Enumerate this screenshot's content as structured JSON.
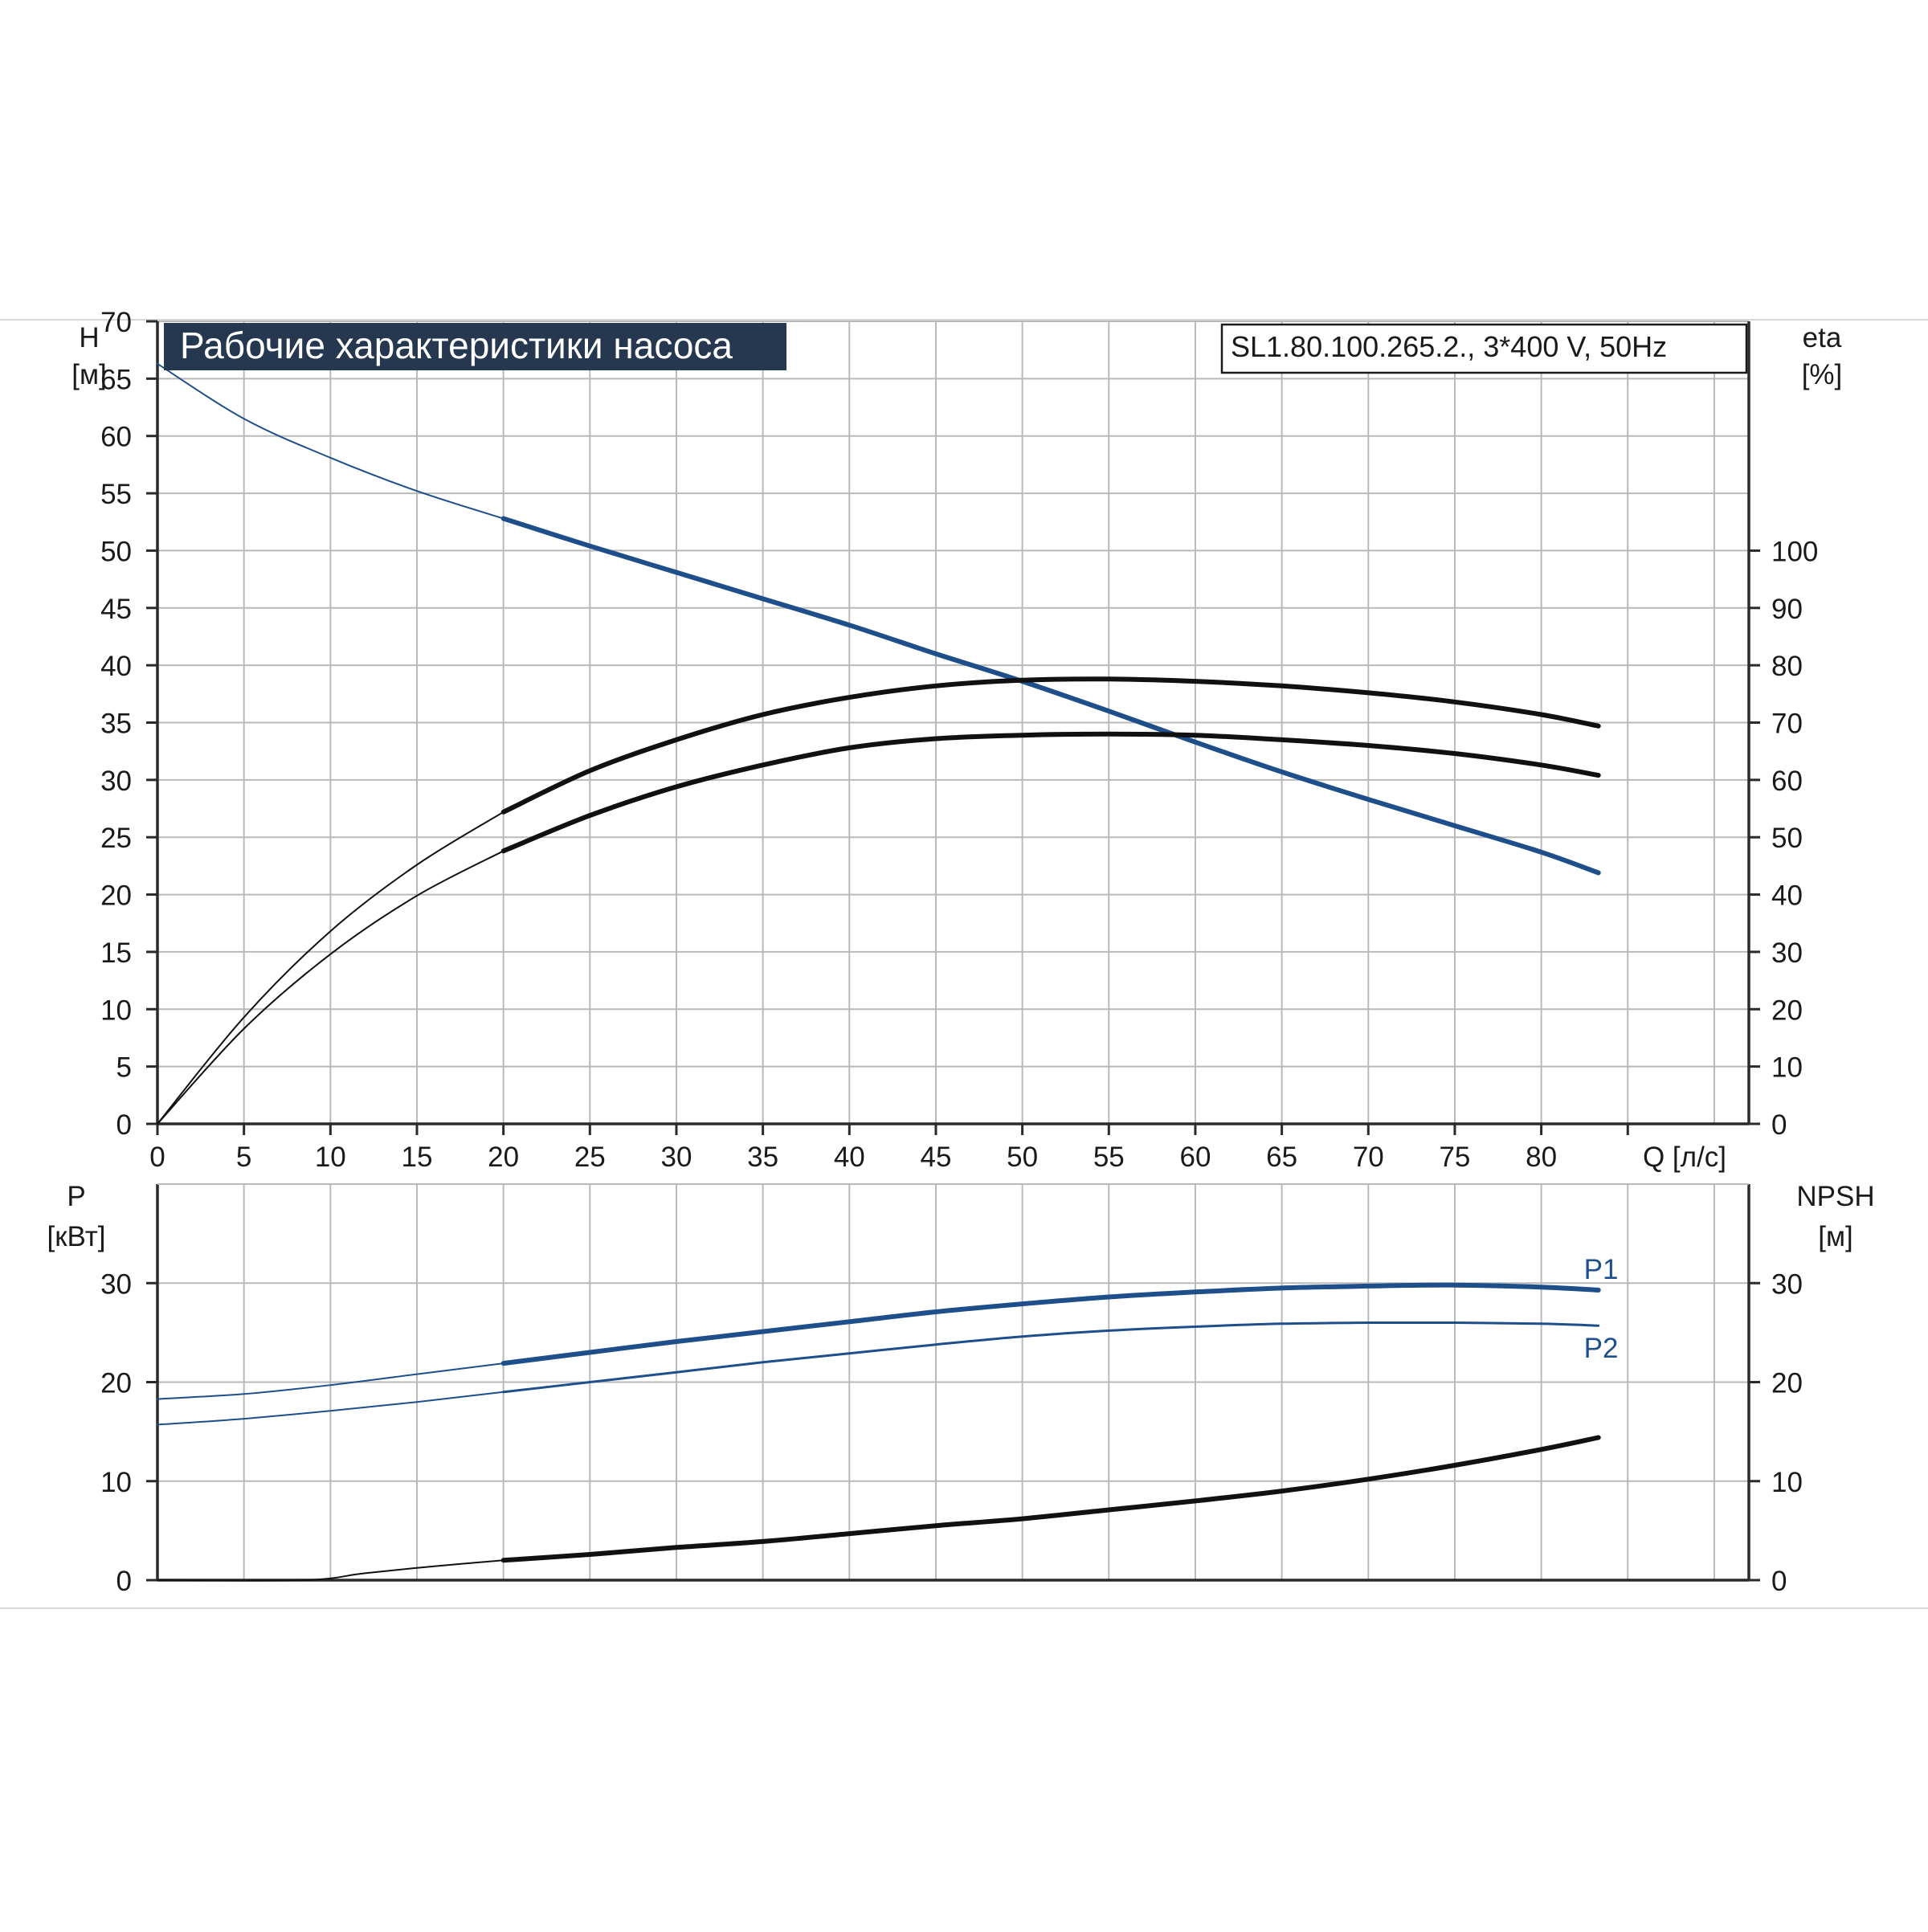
{
  "title": "Рабочие характеристики насоса",
  "model": "SL1.80.100.265.2., 3*400 V, 50Hz",
  "colors": {
    "blue": "#1f4f8b",
    "black": "#111111",
    "grid": "#b9b9b9",
    "axis": "#2a2a2a",
    "title_bg": "#26384f",
    "title_text": "#ffffff"
  },
  "chart_data": [
    {
      "id": "head-efficiency",
      "type": "line",
      "x_axis": {
        "label": "Q [л/с]",
        "range": [
          0,
          92
        ],
        "ticks": [
          0,
          5,
          10,
          15,
          20,
          25,
          30,
          35,
          40,
          45,
          50,
          55,
          60,
          65,
          70,
          75,
          80
        ]
      },
      "y_axis_left": {
        "label_line1": "H",
        "label_line2": "[м]",
        "range": [
          0,
          70
        ],
        "ticks": [
          0,
          5,
          10,
          15,
          20,
          25,
          30,
          35,
          40,
          45,
          50,
          55,
          60,
          65,
          70
        ]
      },
      "y_axis_right": {
        "label_line1": "eta",
        "label_line2": "[%]",
        "range": [
          0,
          140
        ],
        "ticks": [
          0,
          10,
          20,
          30,
          40,
          50,
          60,
          70,
          80,
          90,
          100
        ]
      },
      "grid": true,
      "series": [
        {
          "key": "h",
          "axis": "left",
          "color": "blue",
          "thin_points": [
            [
              0,
              66.3
            ],
            [
              5,
              61.5
            ],
            [
              10,
              58.1
            ],
            [
              15,
              55.2
            ],
            [
              20,
              52.8
            ]
          ],
          "thick_points": [
            [
              20,
              52.8
            ],
            [
              25,
              50.4
            ],
            [
              30,
              48.1
            ],
            [
              35,
              45.8
            ],
            [
              40,
              43.5
            ],
            [
              45,
              41.0
            ],
            [
              50,
              38.6
            ],
            [
              55,
              36.0
            ],
            [
              60,
              33.3
            ],
            [
              65,
              30.7
            ],
            [
              70,
              28.3
            ],
            [
              75,
              26.0
            ],
            [
              80,
              23.7
            ],
            [
              83.3,
              21.9
            ]
          ]
        },
        {
          "key": "eta_upper",
          "axis": "right",
          "color": "black",
          "thin_points": [
            [
              0,
              0
            ],
            [
              5,
              18.6
            ],
            [
              10,
              33.6
            ],
            [
              15,
              45.2
            ],
            [
              20,
              54.4
            ]
          ],
          "thick_points": [
            [
              20,
              54.4
            ],
            [
              25,
              61.6
            ],
            [
              30,
              67.0
            ],
            [
              35,
              71.4
            ],
            [
              40,
              74.4
            ],
            [
              45,
              76.4
            ],
            [
              50,
              77.4
            ],
            [
              55,
              77.6
            ],
            [
              60,
              77.2
            ],
            [
              65,
              76.4
            ],
            [
              70,
              75.2
            ],
            [
              75,
              73.6
            ],
            [
              80,
              71.4
            ],
            [
              83.3,
              69.4
            ]
          ]
        },
        {
          "key": "eta_lower",
          "axis": "right",
          "color": "black",
          "thin_points": [
            [
              0,
              0
            ],
            [
              5,
              16.6
            ],
            [
              10,
              29.6
            ],
            [
              15,
              39.8
            ],
            [
              20,
              47.6
            ]
          ],
          "thick_points": [
            [
              20,
              47.6
            ],
            [
              25,
              53.8
            ],
            [
              30,
              58.8
            ],
            [
              35,
              62.6
            ],
            [
              40,
              65.6
            ],
            [
              45,
              67.2
            ],
            [
              50,
              67.8
            ],
            [
              55,
              68.0
            ],
            [
              60,
              67.8
            ],
            [
              65,
              67.0
            ],
            [
              70,
              66.0
            ],
            [
              75,
              64.6
            ],
            [
              80,
              62.6
            ],
            [
              83.3,
              60.8
            ]
          ]
        }
      ]
    },
    {
      "id": "power-npsh",
      "type": "line",
      "x_axis": {
        "range": [
          0,
          92
        ]
      },
      "y_axis_left": {
        "label_line1": "P",
        "label_line2": "[кВт]",
        "range": [
          0,
          40
        ],
        "ticks": [
          0,
          10,
          20,
          30
        ]
      },
      "y_axis_right": {
        "label_line1": "NPSH",
        "label_line2": "[м]",
        "range": [
          0,
          40
        ],
        "ticks": [
          0,
          10,
          20,
          30
        ]
      },
      "grid": true,
      "series": [
        {
          "key": "p1",
          "name": "P1",
          "axis": "left",
          "color": "blue",
          "thin_points": [
            [
              0,
              18.3
            ],
            [
              5,
              18.8
            ],
            [
              10,
              19.7
            ],
            [
              15,
              20.8
            ],
            [
              20,
              21.9
            ]
          ],
          "thick_points": [
            [
              20,
              21.9
            ],
            [
              25,
              23.0
            ],
            [
              30,
              24.1
            ],
            [
              35,
              25.1
            ],
            [
              40,
              26.1
            ],
            [
              45,
              27.1
            ],
            [
              50,
              27.9
            ],
            [
              55,
              28.6
            ],
            [
              60,
              29.1
            ],
            [
              65,
              29.5
            ],
            [
              70,
              29.7
            ],
            [
              75,
              29.8
            ],
            [
              80,
              29.6
            ],
            [
              83.3,
              29.3
            ]
          ]
        },
        {
          "key": "p2",
          "name": "P2",
          "axis": "left",
          "color": "blue",
          "thin_points": [
            [
              0,
              15.7
            ],
            [
              5,
              16.3
            ],
            [
              10,
              17.1
            ],
            [
              15,
              18.0
            ],
            [
              20,
              19.0
            ]
          ],
          "thick_points": [
            [
              20,
              19.0
            ],
            [
              25,
              20.0
            ],
            [
              30,
              21.0
            ],
            [
              35,
              22.0
            ],
            [
              40,
              22.9
            ],
            [
              45,
              23.8
            ],
            [
              50,
              24.6
            ],
            [
              55,
              25.2
            ],
            [
              60,
              25.6
            ],
            [
              65,
              25.9
            ],
            [
              70,
              26.0
            ],
            [
              75,
              26.0
            ],
            [
              80,
              25.9
            ],
            [
              83.3,
              25.7
            ]
          ],
          "thin_on_plot": true
        },
        {
          "key": "npsh",
          "axis": "right",
          "color": "black",
          "thin_points": [
            [
              0,
              0
            ],
            [
              8.5,
              0
            ],
            [
              12,
              0.7
            ],
            [
              16,
              1.4
            ],
            [
              20,
              2.0
            ]
          ],
          "thick_points": [
            [
              20,
              2.0
            ],
            [
              25,
              2.6
            ],
            [
              30,
              3.3
            ],
            [
              35,
              3.9
            ],
            [
              40,
              4.7
            ],
            [
              45,
              5.5
            ],
            [
              50,
              6.2
            ],
            [
              55,
              7.1
            ],
            [
              60,
              8.0
            ],
            [
              65,
              9.0
            ],
            [
              70,
              10.2
            ],
            [
              75,
              11.6
            ],
            [
              80,
              13.2
            ],
            [
              83.3,
              14.4
            ]
          ]
        }
      ]
    }
  ]
}
